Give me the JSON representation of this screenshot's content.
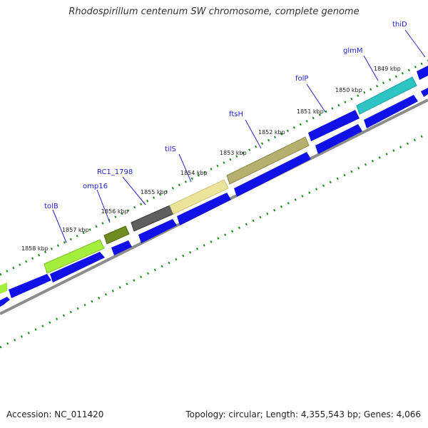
{
  "title": "Rhodospirillum centenum SW chromosome, complete genome",
  "footer": {
    "accession": "Accession: NC_011420",
    "summary": "Topology: circular; Length: 4,355,543 bp; Genes: 4,066"
  },
  "colors": {
    "reverse_strand_gene": "#1010e8",
    "tick_dots": "#1a8a1a",
    "backbone": "#8c8c8c",
    "leader_line": "#2222cc"
  },
  "kbp_markers": [
    "1849 kbp",
    "1850 kbp",
    "1851 kbp",
    "1852 kbp",
    "1853 kbp",
    "1854 kbp",
    "1855 kbp",
    "1856 kbp",
    "1857 kbp",
    "1858 kbp"
  ],
  "genes": [
    {
      "label": "thiD",
      "color": "#1010e8"
    },
    {
      "label": "glmM",
      "color": "#2ec4c4"
    },
    {
      "label": "folP",
      "color": "#1010e8"
    },
    {
      "label": "ftsH",
      "color": "#b5b06e"
    },
    {
      "label": "tilS",
      "color": "#ece39a"
    },
    {
      "label": "RC1_1798",
      "color": "#5f5f5f"
    },
    {
      "label": "omp16",
      "color": "#6e8c22"
    },
    {
      "label": "tolB",
      "color": "#a6ee3c"
    }
  ]
}
